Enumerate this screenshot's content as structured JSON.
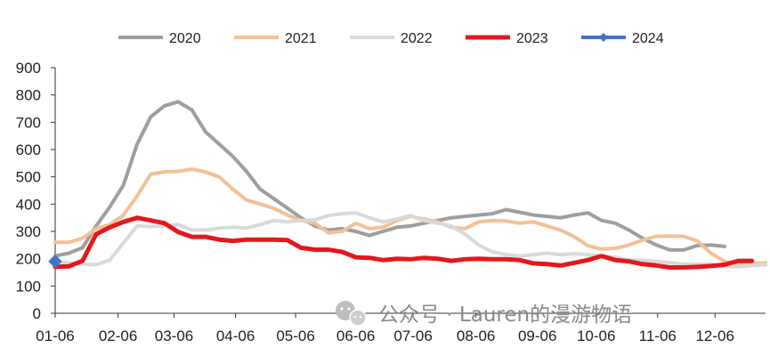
{
  "chart_data": {
    "type": "line",
    "ylim": [
      0,
      900
    ],
    "yticks": [
      0,
      100,
      200,
      300,
      400,
      500,
      600,
      700,
      800,
      900
    ],
    "xlim": [
      0,
      52
    ],
    "xticks": [
      {
        "label": "01-06",
        "x": 0
      },
      {
        "label": "02-06",
        "x": 4.6
      },
      {
        "label": "03-06",
        "x": 8.7
      },
      {
        "label": "04-06",
        "x": 13.2
      },
      {
        "label": "05-06",
        "x": 17.6
      },
      {
        "label": "06-06",
        "x": 22.0
      },
      {
        "label": "07-06",
        "x": 26.2
      },
      {
        "label": "08-06",
        "x": 30.8
      },
      {
        "label": "09-06",
        "x": 35.3
      },
      {
        "label": "10-06",
        "x": 39.6
      },
      {
        "label": "11-06",
        "x": 44.1
      },
      {
        "label": "12-06",
        "x": 48.3
      }
    ],
    "legend_position": "top",
    "series": [
      {
        "name": "2020",
        "color": "#9e9e9e",
        "width": 4,
        "marker": false,
        "values": [
          210,
          220,
          240,
          320,
          390,
          470,
          620,
          720,
          760,
          775,
          745,
          665,
          620,
          575,
          520,
          455,
          420,
          385,
          350,
          320,
          305,
          310,
          300,
          285,
          300,
          315,
          320,
          330,
          340,
          350,
          355,
          360,
          365,
          380,
          370,
          360,
          355,
          350,
          360,
          368,
          340,
          330,
          305,
          275,
          250,
          232,
          232,
          248,
          250,
          245
        ]
      },
      {
        "name": "2021",
        "color": "#f4c095",
        "width": 4,
        "marker": false,
        "values": [
          260,
          260,
          275,
          310,
          325,
          360,
          430,
          510,
          518,
          520,
          528,
          518,
          500,
          455,
          415,
          400,
          385,
          360,
          340,
          330,
          295,
          300,
          330,
          310,
          315,
          340,
          355,
          345,
          335,
          315,
          310,
          335,
          340,
          338,
          330,
          335,
          320,
          305,
          280,
          248,
          235,
          238,
          250,
          268,
          282,
          283,
          282,
          265,
          220,
          190,
          180,
          182,
          185
        ]
      },
      {
        "name": "2022",
        "color": "#d9d9d9",
        "width": 4,
        "marker": false,
        "values": [
          185,
          185,
          180,
          178,
          195,
          258,
          320,
          318,
          320,
          325,
          305,
          305,
          312,
          315,
          312,
          325,
          340,
          335,
          340,
          342,
          358,
          365,
          368,
          350,
          335,
          345,
          358,
          340,
          330,
          320,
          290,
          250,
          225,
          215,
          210,
          215,
          220,
          215,
          218,
          215,
          210,
          205,
          195,
          195,
          190,
          185,
          180,
          180,
          180,
          172,
          170,
          175,
          178
        ]
      },
      {
        "name": "2023",
        "color": "#e4181c",
        "width": 5,
        "marker": false,
        "values": [
          170,
          172,
          192,
          290,
          315,
          335,
          350,
          340,
          330,
          298,
          280,
          280,
          270,
          265,
          270,
          270,
          270,
          268,
          240,
          233,
          233,
          225,
          205,
          203,
          195,
          200,
          198,
          203,
          200,
          192,
          198,
          200,
          198,
          198,
          195,
          183,
          180,
          175,
          185,
          195,
          210,
          195,
          190,
          180,
          175,
          168,
          168,
          170,
          173,
          178,
          192,
          192
        ]
      },
      {
        "name": "2024",
        "color": "#4472c4",
        "width": 4,
        "marker": true,
        "values": [
          190
        ]
      }
    ]
  },
  "watermark": {
    "text": "公众号 · Lauren的漫游物语",
    "icon": "wechat-icon"
  }
}
